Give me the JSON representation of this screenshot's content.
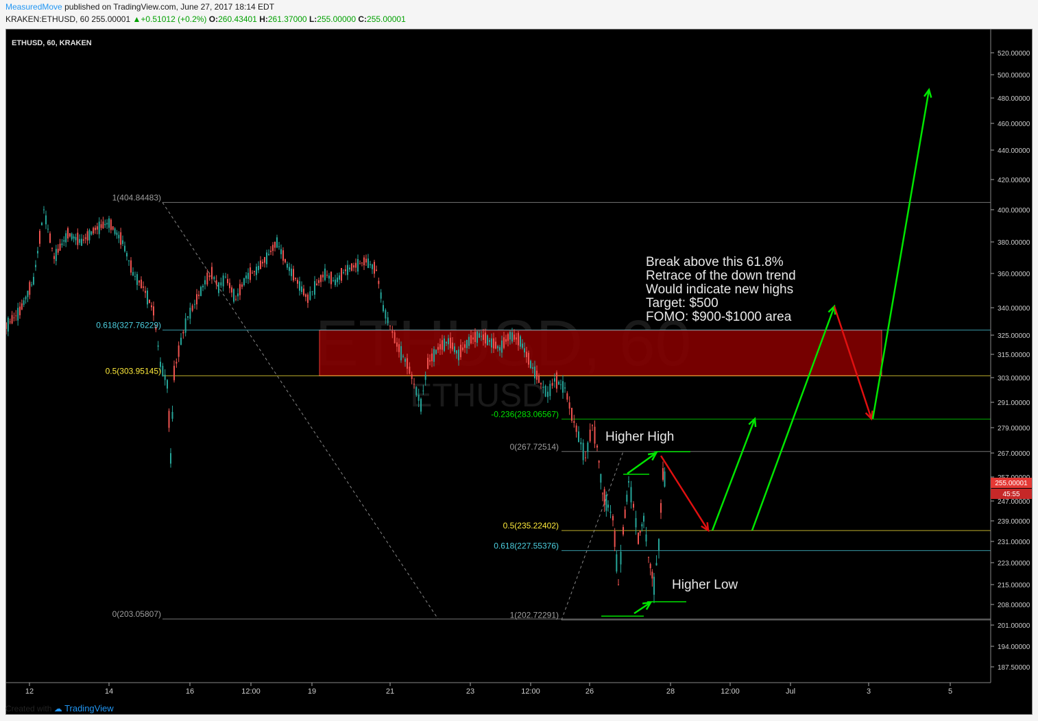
{
  "header": {
    "author": "MeasuredMove",
    "published": "published on TradingView.com, June 27, 2017 18:14 EDT",
    "symbol_line": "KRAKEN:ETHUSD, 60",
    "last": "255.00001",
    "change": "+0.51012 (+0.2%)",
    "o_label": "O:",
    "o": "260.43401",
    "h_label": "H:",
    "h": "261.37000",
    "l_label": "L:",
    "l": "255.00000",
    "c_label": "C:",
    "c": "255.00001"
  },
  "chart_title": "ETHUSD, 60, KRAKEN",
  "watermark": {
    "big": "ETHUSD, 60",
    "small": "ETHUSD"
  },
  "price_badge": {
    "value": "255.00001",
    "countdown": "45:55"
  },
  "chart_data": {
    "type": "line",
    "y_scale": "log",
    "ylim": [
      184,
      540
    ],
    "price_ticks": [
      "520.00000",
      "500.00000",
      "480.00000",
      "460.00000",
      "440.00000",
      "420.00000",
      "400.00000",
      "380.00000",
      "360.00000",
      "340.00000",
      "325.00000",
      "315.00000",
      "303.00000",
      "291.00000",
      "279.00000",
      "267.00000",
      "257.00000",
      "247.00000",
      "239.00000",
      "231.00000",
      "223.00000",
      "215.00000",
      "208.00000",
      "201.00000",
      "194.00000",
      "187.50000"
    ],
    "price_tick_values": [
      520,
      500,
      480,
      460,
      440,
      420,
      400,
      380,
      360,
      340,
      325,
      315,
      303,
      291,
      279,
      267,
      257,
      247,
      239,
      231,
      223,
      215,
      208,
      201,
      194,
      187.5
    ],
    "time_ticks": [
      "12",
      "14",
      "16",
      "12:00",
      "19",
      "21",
      "23",
      "12:00",
      "26",
      "28",
      "12:00",
      "Jul",
      "3",
      "5"
    ],
    "fib_labels": [
      {
        "text": "1(404.84483)",
        "price": 404.84483,
        "color": "#9e9e9e"
      },
      {
        "text": "0.618(327.76229)",
        "price": 327.76229,
        "color": "#4dd0e1"
      },
      {
        "text": "0.5(303.95145)",
        "price": 303.95145,
        "color": "#ffeb3b"
      },
      {
        "text": "0(203.05807)",
        "price": 203.05807,
        "color": "#9e9e9e"
      },
      {
        "text": "-0.236(283.06567)",
        "price": 283.06567,
        "color": "#00e600"
      },
      {
        "text": "0(267.72514)",
        "price": 267.72514,
        "color": "#9e9e9e"
      },
      {
        "text": "0.5(235.22402)",
        "price": 235.22402,
        "color": "#ffeb3b"
      },
      {
        "text": "0.618(227.55376)",
        "price": 227.55376,
        "color": "#4dd0e1"
      },
      {
        "text": "1(202.72291)",
        "price": 202.72291,
        "color": "#9e9e9e"
      }
    ],
    "zone": {
      "top": 327.76229,
      "bottom": 303.95145,
      "color": "#8b0000"
    },
    "annotations": {
      "higher_high": "Higher High",
      "higher_low": "Higher Low",
      "note": [
        "Break above this 61.8%",
        "Retrace of the down trend",
        "Would indicate new highs",
        "Target: $500",
        "FOMO: $900-$1000 area"
      ]
    },
    "price_path": [
      [
        0,
        330
      ],
      [
        20,
        338
      ],
      [
        40,
        356
      ],
      [
        55,
        400
      ],
      [
        70,
        370
      ],
      [
        90,
        385
      ],
      [
        110,
        380
      ],
      [
        130,
        388
      ],
      [
        150,
        392
      ],
      [
        170,
        380
      ],
      [
        185,
        360
      ],
      [
        200,
        352
      ],
      [
        215,
        338
      ],
      [
        225,
        310
      ],
      [
        235,
        300
      ],
      [
        240,
        265
      ],
      [
        245,
        305
      ],
      [
        255,
        322
      ],
      [
        265,
        335
      ],
      [
        275,
        342
      ],
      [
        290,
        355
      ],
      [
        300,
        360
      ],
      [
        310,
        352
      ],
      [
        320,
        358
      ],
      [
        335,
        345
      ],
      [
        350,
        358
      ],
      [
        365,
        362
      ],
      [
        380,
        370
      ],
      [
        395,
        380
      ],
      [
        410,
        365
      ],
      [
        425,
        355
      ],
      [
        440,
        345
      ],
      [
        450,
        352
      ],
      [
        465,
        360
      ],
      [
        480,
        355
      ],
      [
        495,
        362
      ],
      [
        510,
        365
      ],
      [
        525,
        368
      ],
      [
        540,
        362
      ],
      [
        550,
        340
      ],
      [
        560,
        330
      ],
      [
        570,
        320
      ],
      [
        585,
        310
      ],
      [
        595,
        300
      ],
      [
        605,
        290
      ],
      [
        615,
        310
      ],
      [
        630,
        318
      ],
      [
        645,
        322
      ],
      [
        660,
        315
      ],
      [
        675,
        322
      ],
      [
        690,
        325
      ],
      [
        705,
        322
      ],
      [
        720,
        318
      ],
      [
        735,
        325
      ],
      [
        750,
        322
      ],
      [
        765,
        310
      ],
      [
        780,
        300
      ],
      [
        790,
        295
      ],
      [
        800,
        302
      ],
      [
        815,
        298
      ],
      [
        825,
        285
      ],
      [
        835,
        275
      ],
      [
        845,
        265
      ],
      [
        855,
        280
      ],
      [
        862,
        270
      ],
      [
        870,
        250
      ],
      [
        878,
        245
      ],
      [
        885,
        240
      ],
      [
        893,
        215
      ],
      [
        900,
        235
      ],
      [
        908,
        255
      ],
      [
        915,
        245
      ],
      [
        922,
        232
      ],
      [
        930,
        240
      ],
      [
        937,
        225
      ],
      [
        945,
        215
      ],
      [
        952,
        230
      ],
      [
        958,
        258
      ],
      [
        963,
        255
      ]
    ]
  }
}
